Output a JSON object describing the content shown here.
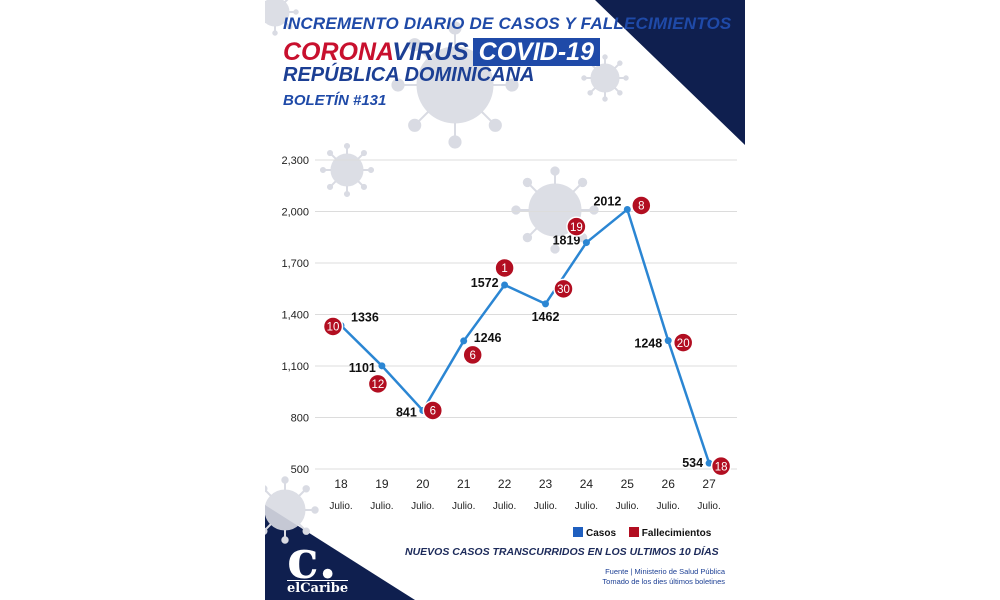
{
  "header": {
    "line1": "INCREMENTO DIARIO DE CASOS Y FALLECIMIENTOS",
    "corona": "CORONA",
    "virus": "VIRUS",
    "covid": "COVID-19",
    "country": "REPÚBLICA DOMINICANA",
    "bulletin": "BOLETÍN #131"
  },
  "colors": {
    "navy": "#0f1f4f",
    "line": "#2b86d3",
    "deaths": "#b20e21",
    "cases_legend": "#1f5fbf",
    "virus_gray": "#d9dbe3"
  },
  "chart_data": {
    "type": "line",
    "categories": [
      "18",
      "19",
      "20",
      "21",
      "22",
      "23",
      "24",
      "25",
      "26",
      "27"
    ],
    "category_sublabel": "Julio.",
    "series": [
      {
        "name": "Casos",
        "values": [
          1336,
          1101,
          841,
          1246,
          1572,
          1462,
          1819,
          2012,
          1248,
          534
        ]
      },
      {
        "name": "Fallecimientos",
        "values": [
          10,
          12,
          6,
          6,
          1,
          30,
          19,
          8,
          20,
          18
        ]
      }
    ],
    "yticks": [
      "2,300",
      "2,000",
      "1,700",
      "1,400",
      "1,100",
      "800",
      "500"
    ],
    "ylim": [
      500,
      2300
    ],
    "grid": true,
    "legend": "bottom-right"
  },
  "legend": {
    "cases": "Casos",
    "deaths": "Fallecimientos"
  },
  "footer": {
    "subtitle": "NUEVOS CASOS TRANSCURRIDOS EN LOS ULTIMOS 10 DÍAS",
    "source1": "Fuente | Ministerio de Salud Pública",
    "source2": "Tomado de  los dies últimos boletines"
  },
  "logo": {
    "mark": "c.",
    "word": "elCaribe"
  }
}
